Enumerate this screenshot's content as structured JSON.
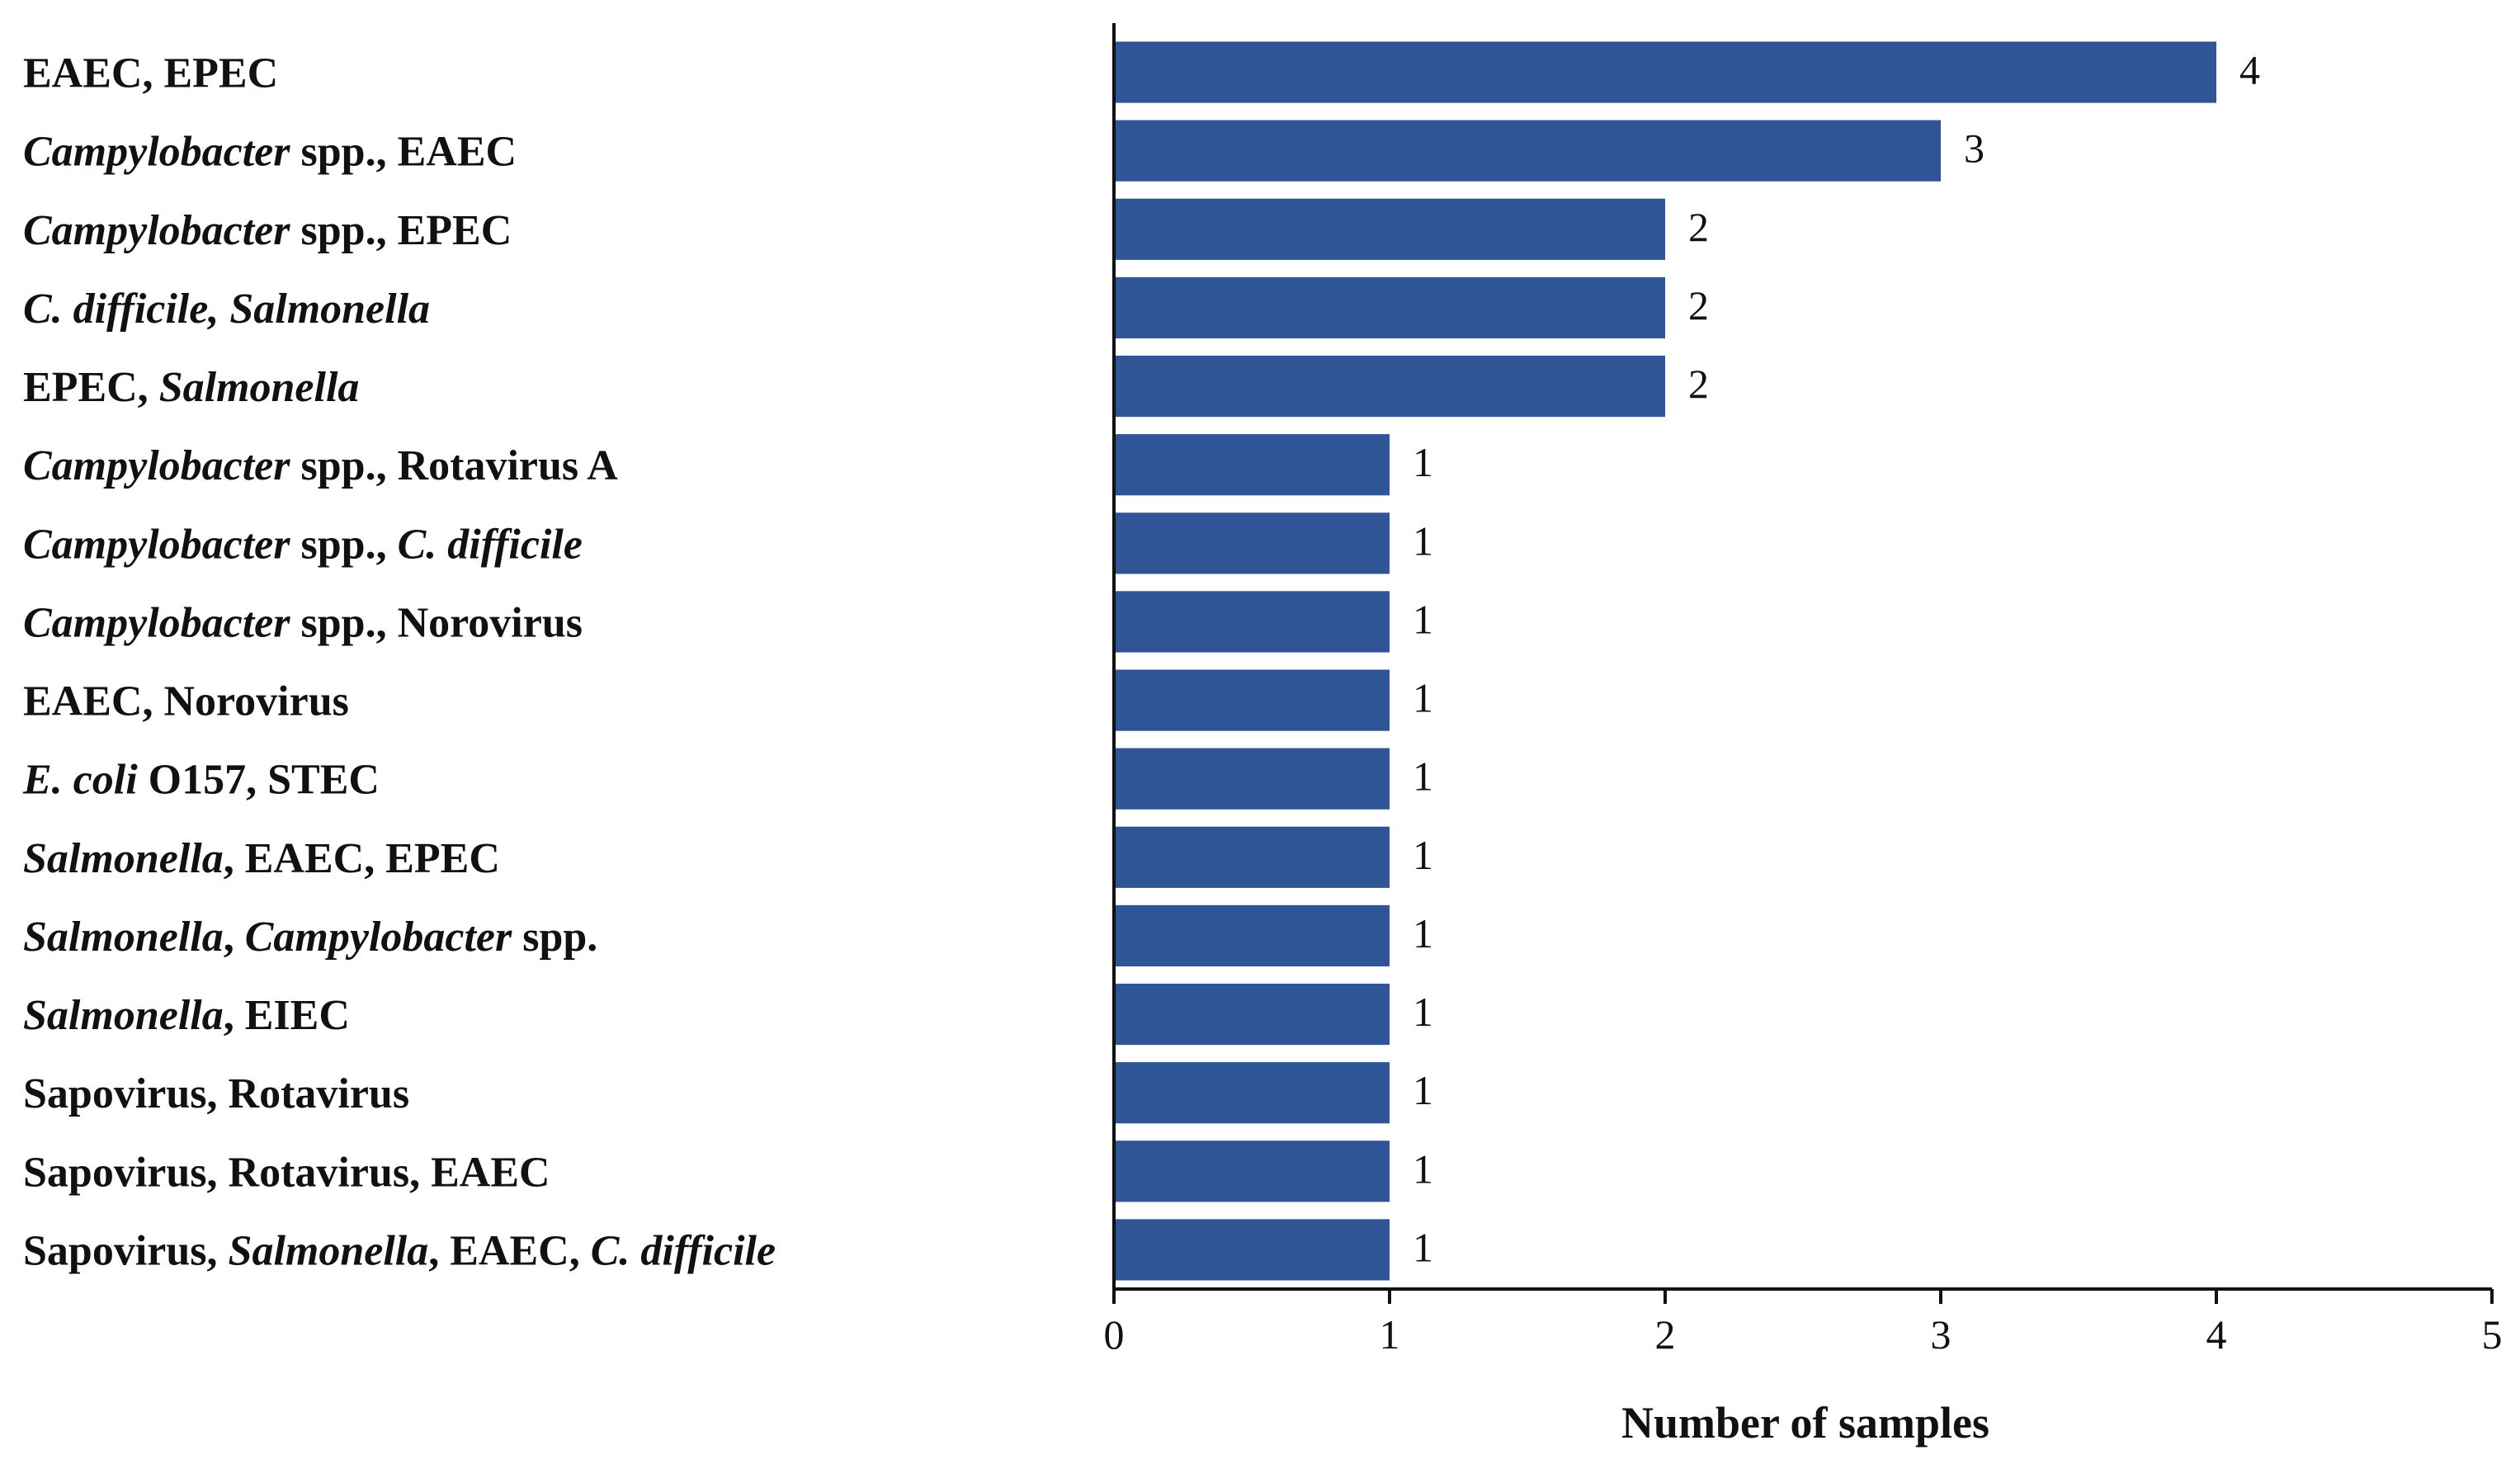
{
  "chart_data": {
    "type": "bar",
    "orientation": "horizontal",
    "title": "",
    "xlabel": "Number  of samples",
    "ylabel": "",
    "xlim": [
      0,
      5
    ],
    "xticks": [
      0,
      1,
      2,
      3,
      4,
      5
    ],
    "grid": false,
    "bar_color": "#2F5597",
    "categories": [
      [
        {
          "t": "EAEC,  EPEC",
          "i": false
        }
      ],
      [
        {
          "t": "Campylobacter",
          "i": true
        },
        {
          "t": " spp., EAEC",
          "i": false
        }
      ],
      [
        {
          "t": "Campylobacter",
          "i": true
        },
        {
          "t": " spp., EPEC",
          "i": false
        }
      ],
      [
        {
          "t": "C. difficile, Salmonella",
          "i": true
        }
      ],
      [
        {
          "t": "EPEC,  ",
          "i": false
        },
        {
          "t": "Salmonella",
          "i": true
        }
      ],
      [
        {
          "t": "Campylobacter",
          "i": true
        },
        {
          "t": " spp., Rotavirus  A",
          "i": false
        }
      ],
      [
        {
          "t": "Campylobacter",
          "i": true
        },
        {
          "t": " spp., ",
          "i": false
        },
        {
          "t": "C. difficile",
          "i": true
        }
      ],
      [
        {
          "t": "Campylobacter",
          "i": true
        },
        {
          "t": " spp., Norovirus",
          "i": false
        }
      ],
      [
        {
          "t": "EAEC,  Norovirus",
          "i": false
        }
      ],
      [
        {
          "t": "E. coli",
          "i": true
        },
        {
          "t": " O157, STEC",
          "i": false
        }
      ],
      [
        {
          "t": "Salmonella",
          "i": true
        },
        {
          "t": ", EAEC,  EPEC",
          "i": false
        }
      ],
      [
        {
          "t": "Salmonella",
          "i": true
        },
        {
          "t": ", ",
          "i": false
        },
        {
          "t": "Campylobacter",
          "i": true
        },
        {
          "t": " spp.",
          "i": false
        }
      ],
      [
        {
          "t": "Salmonella",
          "i": true
        },
        {
          "t": ", EIEC",
          "i": false
        }
      ],
      [
        {
          "t": "Sapovirus, Rotavirus",
          "i": false
        }
      ],
      [
        {
          "t": "Sapovirus, Rotavirus, EAEC",
          "i": false
        }
      ],
      [
        {
          "t": "Sapovirus, ",
          "i": false
        },
        {
          "t": "Salmonella",
          "i": true
        },
        {
          "t": ", EAEC,  ",
          "i": false
        },
        {
          "t": "C. difficile",
          "i": true
        }
      ]
    ],
    "values": [
      4,
      3,
      2,
      2,
      2,
      1,
      1,
      1,
      1,
      1,
      1,
      1,
      1,
      1,
      1,
      1
    ],
    "data_labels": [
      "4",
      "3",
      "2",
      "2",
      "2",
      "1",
      "1",
      "1",
      "1",
      "1",
      "1",
      "1",
      "1",
      "1",
      "1",
      "1"
    ]
  }
}
